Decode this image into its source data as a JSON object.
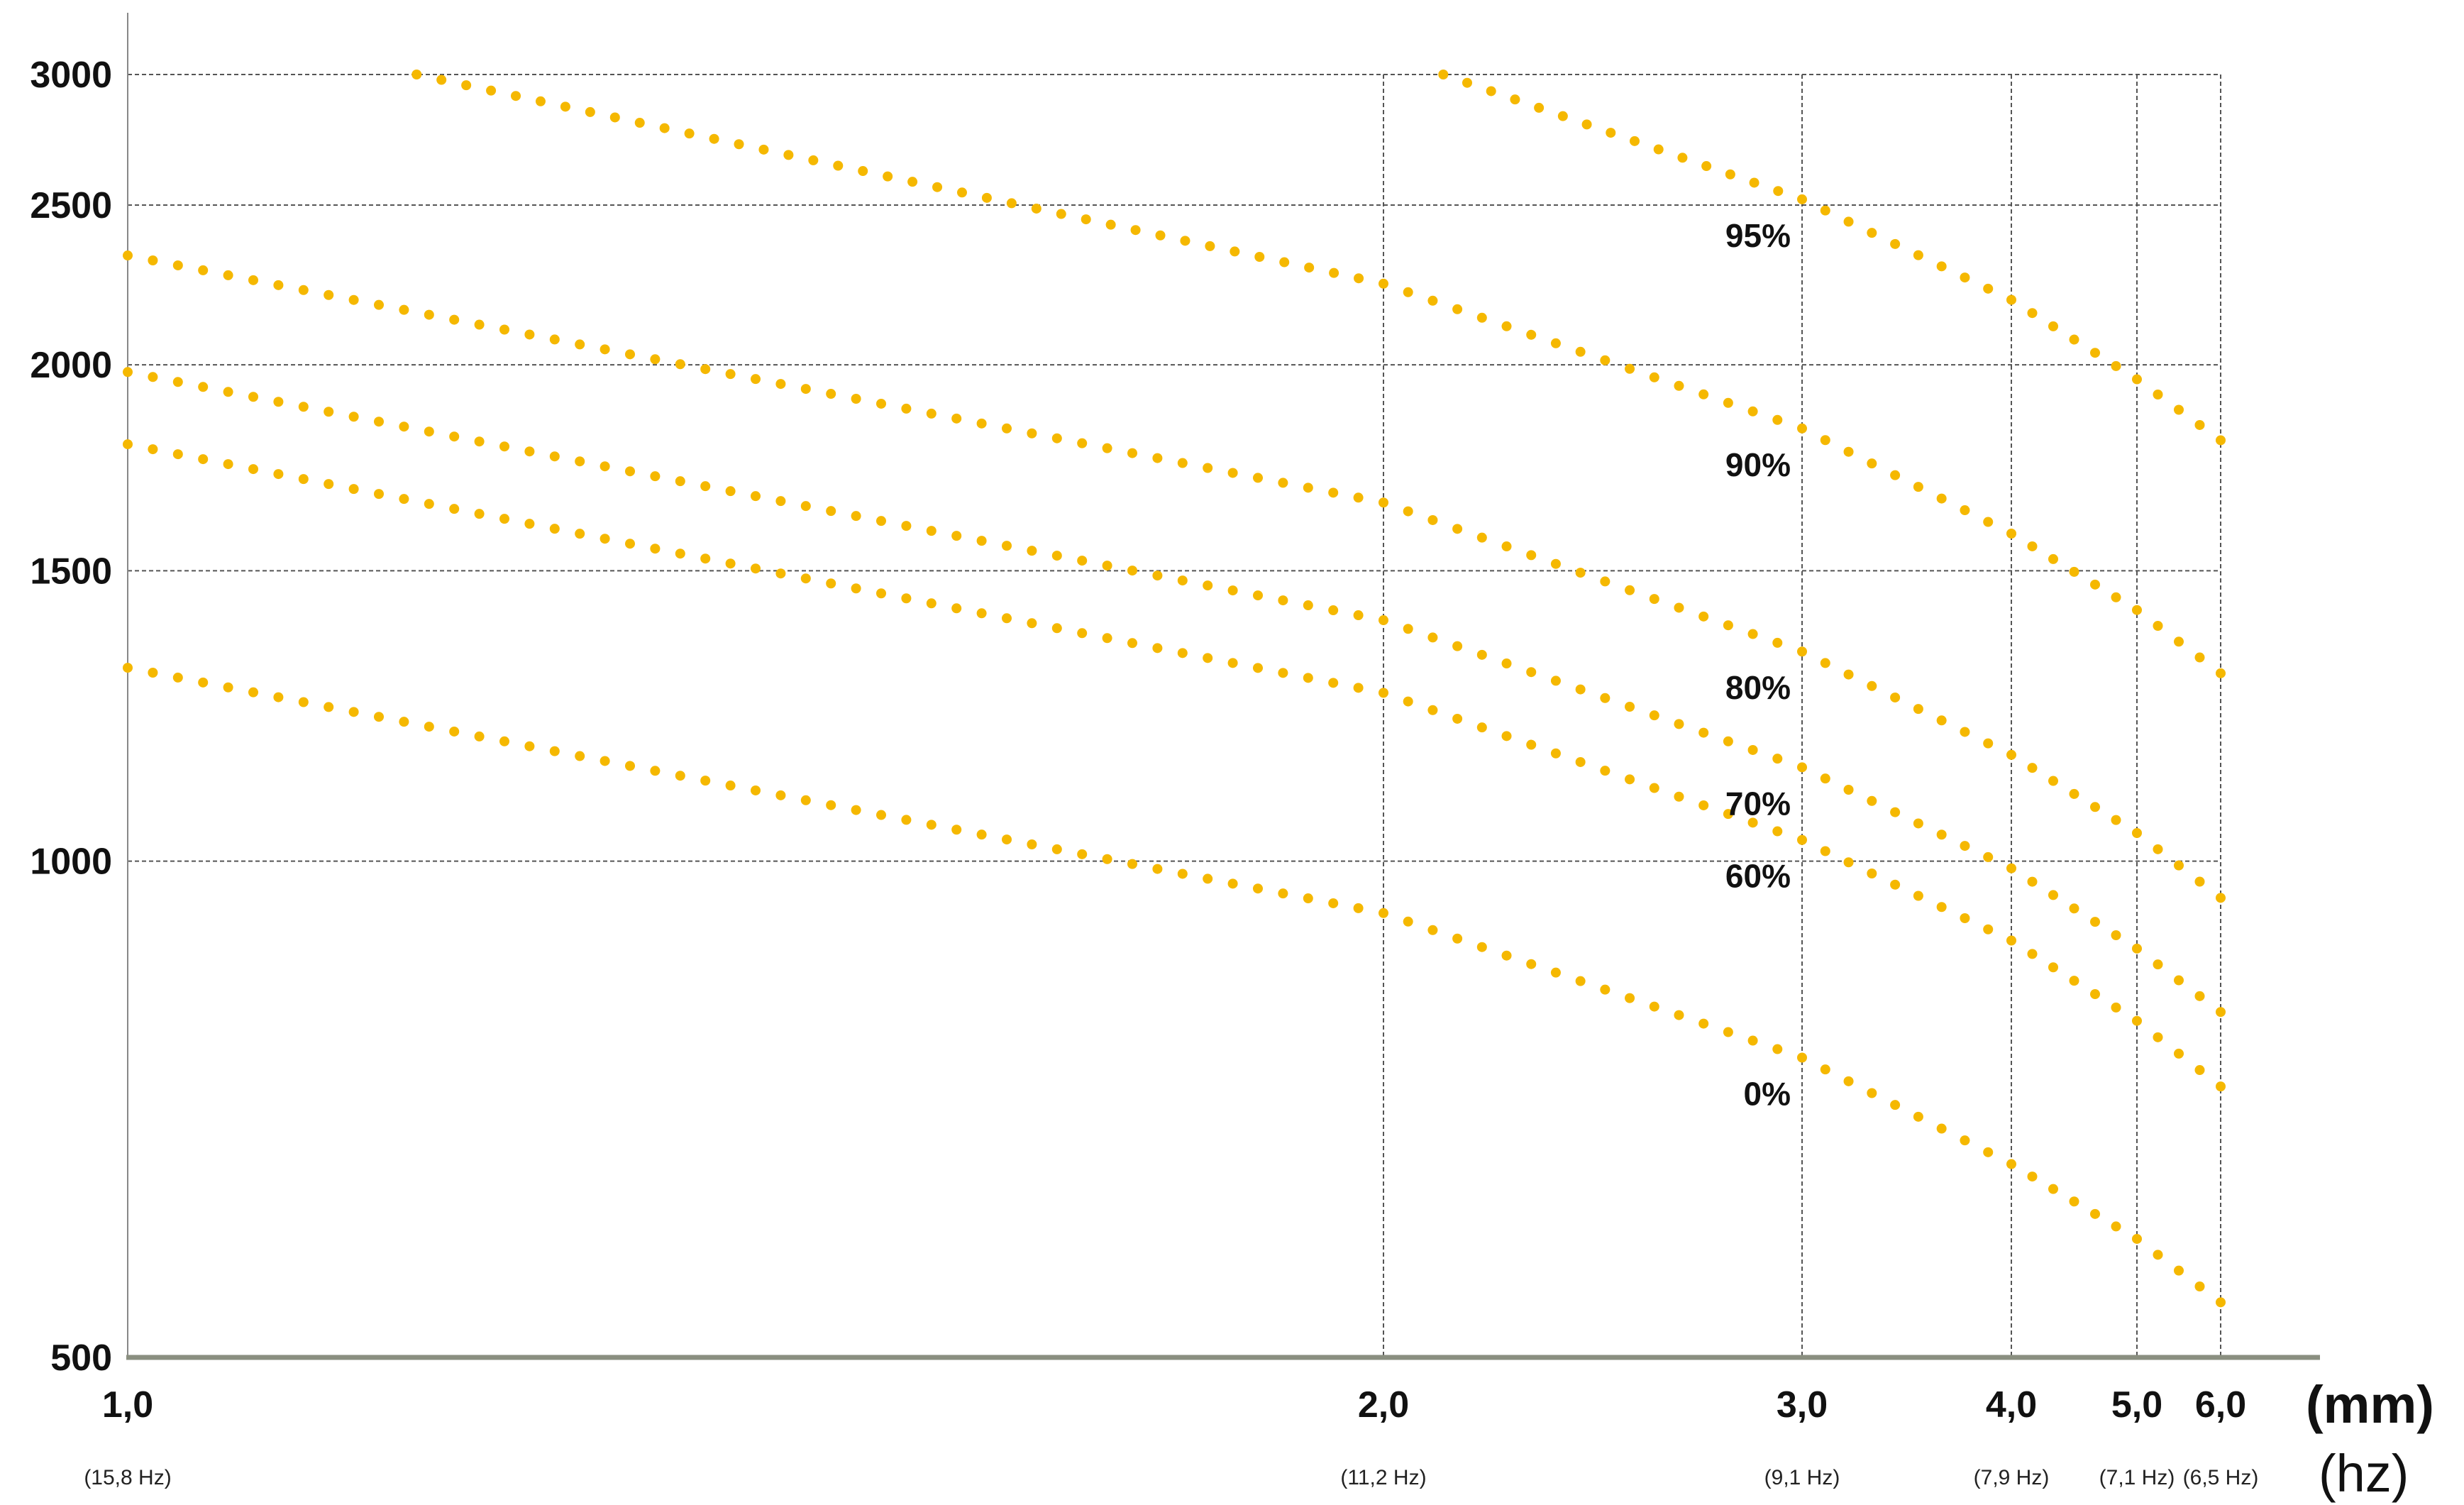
{
  "chart_data": {
    "type": "line",
    "title": "",
    "x_unit_label": "(mm)",
    "x_secondary_unit_label": "(hz)",
    "x_scale": "reciprocal",
    "y_scale": "log",
    "xlim": [
      1.0,
      6.0
    ],
    "ylim": [
      500,
      3000
    ],
    "x_ticks": [
      {
        "value": 1.0,
        "label": "1,0",
        "hz_label": "(15,8 Hz)"
      },
      {
        "value": 2.0,
        "label": "2,0",
        "hz_label": "(11,2 Hz)"
      },
      {
        "value": 3.0,
        "label": "3,0",
        "hz_label": "(9,1 Hz)"
      },
      {
        "value": 4.0,
        "label": "4,0",
        "hz_label": "(7,9 Hz)"
      },
      {
        "value": 5.0,
        "label": "5,0",
        "hz_label": "(7,1 Hz)"
      },
      {
        "value": 6.0,
        "label": "6,0",
        "hz_label": "(6,5 Hz)"
      }
    ],
    "y_ticks": [
      {
        "value": 3000,
        "label": "3000"
      },
      {
        "value": 2500,
        "label": "2500"
      },
      {
        "value": 2000,
        "label": "2000"
      },
      {
        "value": 1500,
        "label": "1500"
      },
      {
        "value": 1000,
        "label": "1000"
      },
      {
        "value": 500,
        "label": "500"
      }
    ],
    "grid": true,
    "series_color": "#F5B800",
    "series": [
      {
        "name": "95%",
        "x": [
          2.1,
          3.0,
          4.0,
          5.0,
          6.0
        ],
        "y": [
          3000,
          2520,
          2190,
          1960,
          1800
        ],
        "label_at_x": 3.0
      },
      {
        "name": "90%",
        "x": [
          1.13,
          2.0,
          3.0,
          4.0,
          5.0,
          6.0
        ],
        "y": [
          3000,
          2240,
          1830,
          1580,
          1420,
          1300
        ],
        "label_at_x": 3.0
      },
      {
        "name": "80%",
        "x": [
          1.0,
          2.0,
          3.0,
          4.0,
          5.0,
          6.0
        ],
        "y": [
          2330,
          1650,
          1340,
          1160,
          1040,
          950
        ],
        "label_at_x": 3.0
      },
      {
        "name": "70%",
        "x": [
          1.0,
          2.0,
          3.0,
          4.0,
          5.0,
          6.0
        ],
        "y": [
          1980,
          1400,
          1140,
          990,
          885,
          810
        ],
        "label_at_x": 3.0
      },
      {
        "name": "60%",
        "x": [
          1.0,
          2.0,
          3.0,
          4.0,
          5.0,
          6.0
        ],
        "y": [
          1790,
          1265,
          1030,
          895,
          800,
          730
        ],
        "label_at_x": 3.0
      },
      {
        "name": "0%",
        "x": [
          1.0,
          2.0,
          3.0,
          4.0,
          5.0,
          6.0
        ],
        "y": [
          1310,
          930,
          760,
          655,
          590,
          540
        ],
        "label_at_x": 3.0
      }
    ]
  }
}
